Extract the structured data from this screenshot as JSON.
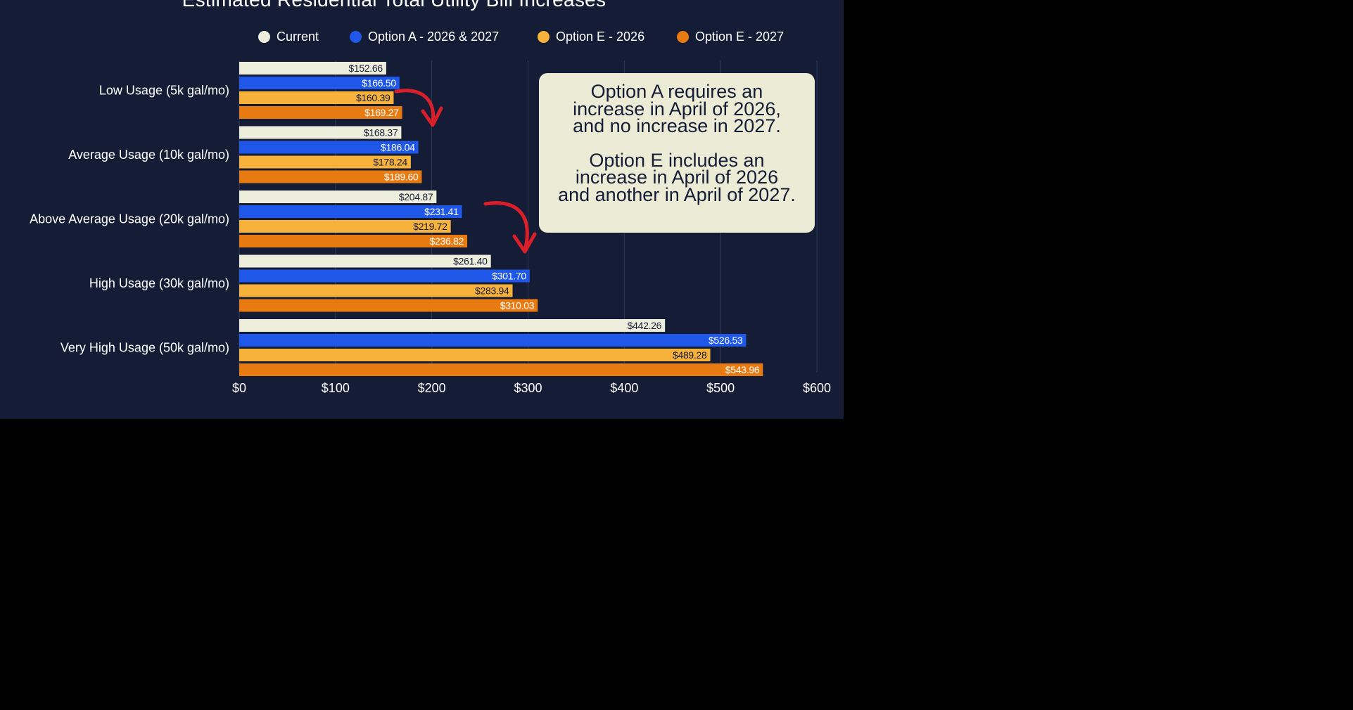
{
  "chart_data": {
    "type": "bar",
    "orientation": "horizontal",
    "title": "Estimated Residential Total Utility Bill Increases",
    "categories": [
      "Low Usage (5k gal/mo)",
      "Average Usage (10k gal/mo)",
      "Above Average Usage (20k gal/mo)",
      "High Usage (30k gal/mo)",
      "Very High Usage (50k gal/mo)"
    ],
    "series": [
      {
        "name": "Current",
        "color": "#eeeedd",
        "label_color": "#141c36",
        "values": [
          152.66,
          168.37,
          204.87,
          261.4,
          442.26
        ],
        "labels": [
          "$152.66",
          "$168.37",
          "$204.87",
          "$261.40",
          "$442.26"
        ]
      },
      {
        "name": "Option A - 2026 & 2027",
        "color": "#1f57e8",
        "label_color": "#ffffff",
        "values": [
          166.5,
          186.04,
          231.41,
          301.7,
          526.53
        ],
        "labels": [
          "$166.50",
          "$186.04",
          "$231.41",
          "$301.70",
          "$526.53"
        ]
      },
      {
        "name": "Option E - 2026",
        "color": "#f7b23b",
        "label_color": "#141c36",
        "values": [
          160.39,
          178.24,
          219.72,
          283.94,
          489.28
        ],
        "labels": [
          "$160.39",
          "$178.24",
          "$219.72",
          "$283.94",
          "$489.28"
        ]
      },
      {
        "name": "Option E - 2027",
        "color": "#e87a12",
        "label_color": "#ffffff",
        "values": [
          169.27,
          189.6,
          236.82,
          310.03,
          543.96
        ],
        "labels": [
          "$169.27",
          "$189.60",
          "$236.82",
          "$310.03",
          "$543.96"
        ]
      }
    ],
    "xlim": [
      0,
      600
    ],
    "xticks": [
      0,
      100,
      200,
      300,
      400,
      500,
      600
    ],
    "xtick_labels": [
      "$0",
      "$100",
      "$200",
      "$300",
      "$400",
      "$500",
      "$600"
    ],
    "grid": true,
    "legend_position": "top",
    "annotations": [
      "Option A requires an\nincrease in April of 2026,\nand no increase in 2027.",
      "Option E includes an\nincrease in April of 2026\nand another in April of 2027."
    ]
  },
  "colors": {
    "panel_background": "#141c36",
    "page_background": "#000000",
    "arrow": "#d9202a",
    "gridline": "#2f3a59"
  }
}
